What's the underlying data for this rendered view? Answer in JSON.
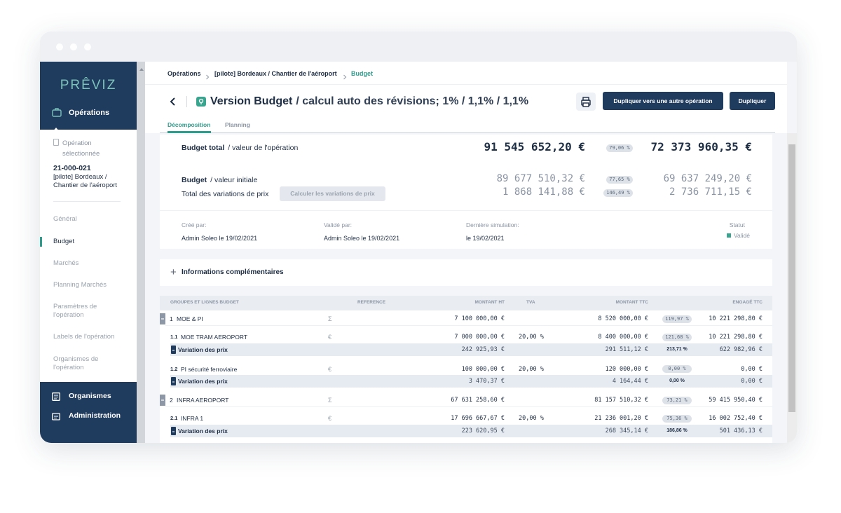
{
  "sidebar": {
    "logo": "PRÊVIZ",
    "section": "Opérations",
    "selected_label": "Opération sélectionnée",
    "operation_code": "21-000-021",
    "operation_name": "[pilote] Bordeaux / Chantier de l'aéroport",
    "menu": [
      "Général",
      "Budget",
      "Marchés",
      "Planning Marchés",
      "Paramètres de l'opération",
      "Labels de l'opération",
      "Organismes de l'opération"
    ],
    "bottom_menu": [
      "Organismes",
      "Administration"
    ]
  },
  "breadcrumb": [
    "Opérations",
    "[pilote] Bordeaux / Chantier de l'aéroport",
    "Budget"
  ],
  "header": {
    "title": "Version Budget",
    "subtitle": "/ calcul auto des révisions; 1% / 1,1% / 1,1%",
    "buttons": [
      "Dupliquer vers une autre opération",
      "Dupliquer"
    ]
  },
  "tabs": [
    "Décomposition",
    "Planning"
  ],
  "budget": {
    "total": {
      "label": "Budget total",
      "sub": "/ valeur de l'opération",
      "amount": "91 545 652,20 €",
      "percent": "79,06 %",
      "amount_2": "72 373 960,35 €"
    },
    "initial": {
      "label": "Budget",
      "sub": "/ valeur initiale",
      "amount": "89 677 510,32 €",
      "percent": "77,65 %",
      "amount_2": "69 637 249,20 €"
    },
    "variations": {
      "label": "Total des variations de prix",
      "button": "Calculer les variations de prix",
      "amount": "1 868 141,88 €",
      "percent": "146,49 %",
      "amount_2": "2 736 711,15 €"
    }
  },
  "meta": [
    {
      "label": "Créé par:",
      "value": "Admin Soleo le 19/02/2021"
    },
    {
      "label": "Validé par:",
      "value": "Admin Soleo le 19/02/2021"
    },
    {
      "label": "Dernière simulation:",
      "value": "le 19/02/2021"
    },
    {
      "label": "Statut",
      "value": "Validé"
    }
  ],
  "info": {
    "icon": "+",
    "label": "Informations complémentaires"
  },
  "table": {
    "columns": [
      "GROUPES ET LIGNES BUDGET",
      "REFERENCE",
      "MONTANT HT",
      "TVA",
      "MONTANT TTC",
      "ENGAGÉ TTC"
    ],
    "groups": [
      {
        "num": "1",
        "label": "MOE & PI",
        "ref": "Σ",
        "ht": "7 100 000,00 €",
        "ttc": "8 520 000,00 €",
        "percent": "119,97 %",
        "engage": "10 221 298,80 €",
        "lines": [
          {
            "num": "1.1",
            "label": "MOE TRAM AEROPORT",
            "ref": "€",
            "ht": "7 000 000,00 €",
            "tva": "20,00 %",
            "ttc": "8 400 000,00 €",
            "percent": "121,68 %",
            "engage": "10 221 298,80 €",
            "variation": {
              "label": "Variation des prix",
              "ht": "242 925,93 €",
              "ttc": "291 511,12 €",
              "percent": "213,71 %",
              "engage": "622 982,96 €"
            }
          },
          {
            "num": "1.2",
            "label": "PI sécurité ferroviaire",
            "ref": "€",
            "ht": "100 000,00 €",
            "tva": "20,00 %",
            "ttc": "120 000,00 €",
            "percent": "0,00 %",
            "engage": "0,00 €",
            "variation": {
              "label": "Variation des prix",
              "ht": "3 470,37 €",
              "ttc": "4 164,44 €",
              "percent": "0,00 %",
              "engage": "0,00 €"
            }
          }
        ]
      },
      {
        "num": "2",
        "label": "INFRA AEROPORT",
        "ref": "Σ",
        "ht": "67 631 258,60 €",
        "ttc": "81 157 510,32 €",
        "percent": "73,21 %",
        "engage": "59 415 950,40 €",
        "lines": [
          {
            "num": "2.1",
            "label": "INFRA 1",
            "ref": "€",
            "ht": "17 696 667,67 €",
            "tva": "20,00 %",
            "ttc": "21 236 001,20 €",
            "percent": "75,36 %",
            "engage": "16 002 752,40 €",
            "variation": {
              "label": "Variation des prix",
              "ht": "223 620,95 €",
              "ttc": "268 345,14 €",
              "percent": "186,86 %",
              "engage": "501 436,13 €"
            }
          }
        ]
      }
    ]
  }
}
